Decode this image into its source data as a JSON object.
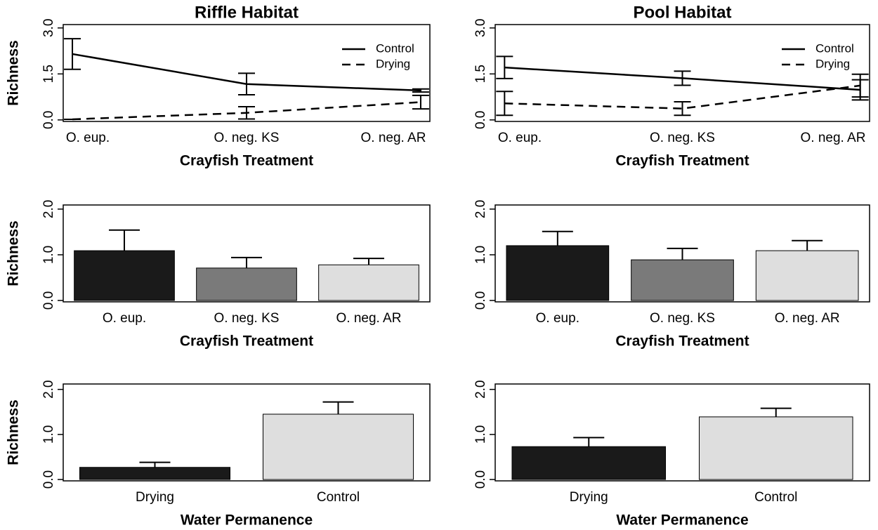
{
  "chart_data": [
    {
      "type": "line",
      "title": "Riffle Habitat",
      "xlabel": "Crayfish Treatment",
      "ylabel": "Richness",
      "categories": [
        "O. eup.",
        "O. neg. KS",
        "O. neg. AR"
      ],
      "series": [
        {
          "name": "Control",
          "color": "#000000",
          "linestyle": "solid",
          "values": [
            2.15,
            1.17,
            0.96
          ],
          "errors": [
            0.5,
            0.35,
            0.05
          ]
        },
        {
          "name": "Drying",
          "color": "#000000",
          "linestyle": "dashed",
          "values": [
            0.02,
            0.23,
            0.58
          ],
          "errors": [
            0,
            0.2,
            0.22
          ]
        }
      ],
      "ylim": [
        -0.05,
        3.11
      ],
      "yticks": [
        {
          "value": 0,
          "label": "0.0"
        },
        1.5,
        {
          "value": 3,
          "label": "3.0"
        }
      ],
      "legend": "upper right"
    },
    {
      "type": "line",
      "title": "Pool Habitat",
      "xlabel": "Crayfish Treatment",
      "categories": [
        "O. eup.",
        "O. neg. KS",
        "O. neg. AR"
      ],
      "series": [
        {
          "name": "Control",
          "color": "#000000",
          "linestyle": "solid",
          "values": [
            1.71,
            1.36,
            0.98
          ],
          "errors": [
            0.36,
            0.23,
            0.33
          ]
        },
        {
          "name": "Drying",
          "color": "#000000",
          "linestyle": "dashed",
          "values": [
            0.54,
            0.37,
            1.12
          ],
          "errors": [
            0.39,
            0.22,
            0.37
          ]
        }
      ],
      "ylim": [
        -0.05,
        3.11
      ],
      "yticks": [
        {
          "value": 0,
          "label": "0.0"
        },
        1.5,
        {
          "value": 3,
          "label": "3.0"
        }
      ],
      "legend": "upper right"
    },
    {
      "type": "bar",
      "xlabel": "Crayfish Treatment",
      "ylabel": "Richness",
      "categories": [
        "O. eup.",
        "O. neg. KS",
        "O. neg. AR"
      ],
      "values": [
        1.09,
        0.71,
        0.78
      ],
      "errors": [
        0.45,
        0.23,
        0.14
      ],
      "colors": [
        "#1a1a1a",
        "#7a7a7a",
        "#dedede"
      ],
      "ylim": [
        -0.03,
        2.09
      ],
      "yticks": [
        {
          "value": 0,
          "label": "0.0"
        },
        {
          "value": 1,
          "label": "1.0"
        },
        {
          "value": 2,
          "label": "2.0"
        }
      ]
    },
    {
      "type": "bar",
      "xlabel": "Crayfish Treatment",
      "categories": [
        "O. eup.",
        "O. neg. KS",
        "O. neg. AR"
      ],
      "values": [
        1.2,
        0.89,
        1.09
      ],
      "errors": [
        0.31,
        0.25,
        0.22
      ],
      "colors": [
        "#1a1a1a",
        "#7a7a7a",
        "#dedede"
      ],
      "ylim": [
        -0.03,
        2.09
      ],
      "yticks": [
        {
          "value": 0,
          "label": "0.0"
        },
        {
          "value": 1,
          "label": "1.0"
        },
        {
          "value": 2,
          "label": "2.0"
        }
      ]
    },
    {
      "type": "bar",
      "xlabel": "Water Permanence",
      "ylabel": "Richness",
      "categories": [
        "Drying",
        "Control"
      ],
      "values": [
        0.27,
        1.45
      ],
      "errors": [
        0.11,
        0.27
      ],
      "colors": [
        "#1a1a1a",
        "#dedede"
      ],
      "ylim": [
        -0.03,
        2.12
      ],
      "yticks": [
        {
          "value": 0,
          "label": "0.0"
        },
        {
          "value": 1,
          "label": "1.0"
        },
        {
          "value": 2,
          "label": "2.0"
        }
      ]
    },
    {
      "type": "bar",
      "xlabel": "Water Permanence",
      "categories": [
        "Drying",
        "Control"
      ],
      "values": [
        0.73,
        1.39
      ],
      "errors": [
        0.2,
        0.19
      ],
      "colors": [
        "#1a1a1a",
        "#dedede"
      ],
      "ylim": [
        -0.03,
        2.12
      ],
      "yticks": [
        {
          "value": 0,
          "label": "0.0"
        },
        {
          "value": 1,
          "label": "1.0"
        },
        {
          "value": 2,
          "label": "2.0"
        }
      ]
    }
  ]
}
